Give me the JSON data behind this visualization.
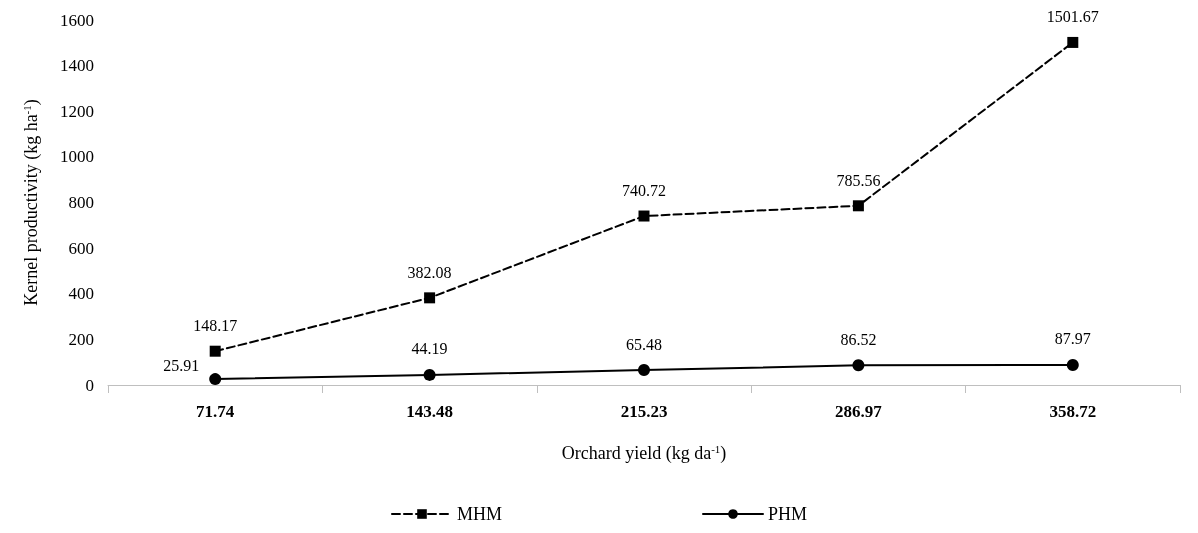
{
  "chart_data": {
    "type": "line",
    "xlabel": "Orchard yield (kg da$^{-1}$)",
    "ylabel": "Kernel productivity (kg ha$^{-1}$)",
    "categories": [
      "71.74",
      "143.48",
      "215.23",
      "286.97",
      "358.72"
    ],
    "series": [
      {
        "name": "MHM",
        "color": "#000000",
        "marker": "square",
        "line_style": "dashed",
        "values": [
          148.17,
          382.08,
          740.72,
          785.56,
          1501.67
        ]
      },
      {
        "name": "PHM",
        "color": "#000000",
        "marker": "circle",
        "line_style": "solid",
        "values": [
          25.91,
          44.19,
          65.48,
          86.52,
          87.97
        ]
      }
    ],
    "ylim": [
      0,
      1600
    ],
    "yticks": [
      0,
      200,
      400,
      600,
      800,
      1000,
      1200,
      1400,
      1600
    ],
    "grid": false,
    "legend": "bottom",
    "data_labels": true
  }
}
